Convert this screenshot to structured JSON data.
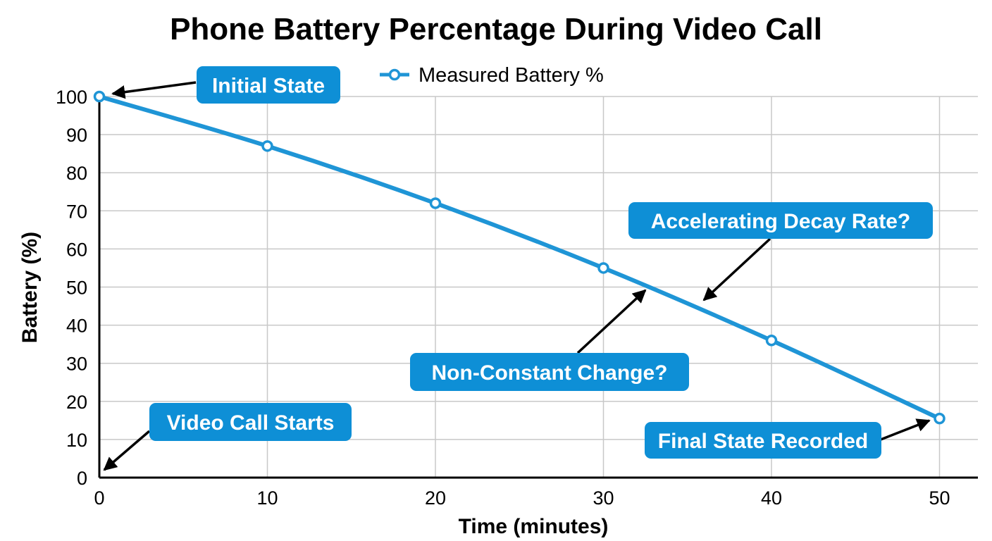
{
  "chart_data": {
    "type": "line",
    "title": "Phone Battery Percentage During Video Call",
    "xlabel": "Time (minutes)",
    "ylabel": "Battery (%)",
    "x": [
      0,
      10,
      20,
      30,
      40,
      50
    ],
    "x_ticks": [
      "0",
      "10",
      "20",
      "30",
      "40",
      "50"
    ],
    "y_ticks": [
      "0",
      "10",
      "20",
      "30",
      "40",
      "50",
      "60",
      "70",
      "80",
      "90",
      "100"
    ],
    "xlim": [
      0,
      50
    ],
    "ylim": [
      0,
      100
    ],
    "grid": true,
    "legend_position": "top-center",
    "series": [
      {
        "name": "Measured Battery %",
        "values": [
          100,
          87,
          72,
          55,
          36,
          15.5
        ],
        "color": "#1f95d6"
      }
    ],
    "annotations": [
      {
        "id": "initial",
        "text": "Initial State",
        "point": [
          0,
          100
        ]
      },
      {
        "id": "call-start",
        "text": "Video Call Starts",
        "point": [
          0,
          2
        ]
      },
      {
        "id": "decay",
        "text": "Accelerating Decay Rate?",
        "point": [
          36,
          46
        ]
      },
      {
        "id": "non-constant",
        "text": "Non-Constant Change?",
        "point": [
          32.5,
          49
        ]
      },
      {
        "id": "final",
        "text": "Final State Recorded",
        "point": [
          48.8,
          15
        ]
      }
    ],
    "annotation_color": "#0e8fd6"
  }
}
